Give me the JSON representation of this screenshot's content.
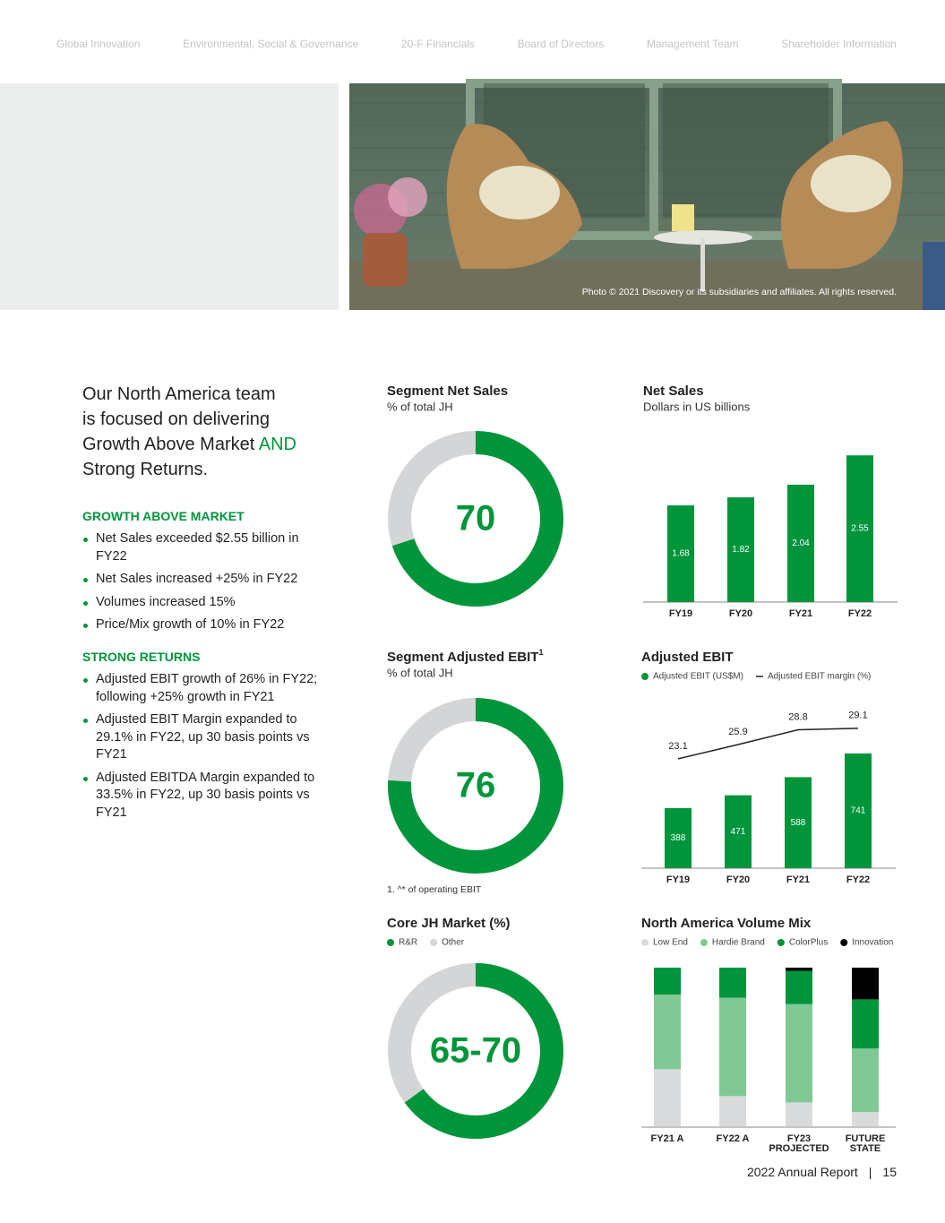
{
  "nav": [
    "Global Innovation",
    "Environmental, Social & Governance",
    "20-F Financials",
    "Board of Directors",
    "Management Team",
    "Shareholder Information"
  ],
  "photo_caption": "Photo © 2021 Discovery or its subsidiaries and affiliates. All rights reserved.",
  "intro": {
    "lines": [
      "Our North America team",
      "is focused on delivering",
      "Growth Above Market"
    ],
    "highlight": "AND",
    "last": "Strong Returns."
  },
  "sections": [
    {
      "title": "GROWTH ABOVE MARKET",
      "bullets": [
        "Net Sales exceeded $2.55 billion in FY22",
        "Net Sales increased +25% in FY22",
        "Volumes increased 15%",
        "Price/Mix growth of 10% in FY22"
      ]
    },
    {
      "title": "STRONG RETURNS",
      "bullets": [
        "Adjusted EBIT growth of 26% in FY22; following +25% growth in FY21",
        "Adjusted EBIT Margin expanded to 29.1% in FY22, up 30 basis points vs FY21",
        "Adjusted EBITDA Margin expanded to 33.5% in FY22, up 30 basis points vs FY21"
      ]
    }
  ],
  "charts": [
    {
      "type": "donut",
      "title": "Segment Net Sales",
      "subtitle": "% of total JH",
      "value": 70,
      "color": "#00953b",
      "rest_color": "#d4d5d6"
    },
    {
      "type": "donut",
      "title": "Segment Adjusted EBIT",
      "title_note": "1",
      "subtitle": "% of total JH",
      "value": 76,
      "color": "#00953b",
      "rest_color": "#d4d5d6"
    },
    {
      "type": "donut",
      "title": "Core JH Market (%)",
      "legend": [
        {
          "name": "R&R",
          "color": "#00953b"
        },
        {
          "name": "Other",
          "color": "#d4d5d6"
        }
      ],
      "values": [
        65,
        70
      ],
      "value_label": "65-70"
    },
    {
      "type": "bar",
      "title": "Net Sales",
      "subtitle": "Dollars in US billions",
      "categories": [
        "FY19",
        "FY20",
        "FY21",
        "FY22"
      ],
      "values": [
        1.68,
        1.82,
        2.04,
        2.55
      ],
      "color": "#00953b",
      "ylim": [
        0,
        2.6
      ]
    },
    {
      "type": "bar_line",
      "title": "Adjusted EBIT",
      "categories": [
        "FY19",
        "FY20",
        "FY21",
        "FY22"
      ],
      "series": [
        {
          "name": "Adjusted EBIT (US$M)",
          "color": "#00953b",
          "values": [
            388,
            471,
            588,
            741
          ]
        },
        {
          "name": "Adjusted EBIT margin (%)",
          "color": "#222222",
          "values": [
            23.1,
            25.9,
            28.8,
            29.1
          ],
          "axis": "y2"
        }
      ],
      "ylim": [
        0,
        1065
      ],
      "y2lim": [
        1.6,
        34
      ]
    },
    {
      "type": "stacked_bar",
      "title": "North America Volume Mix",
      "categories": [
        "FY21 A",
        "FY22 A",
        "FY23\nPROJECTED",
        "FUTURE\nSTATE"
      ],
      "series": [
        {
          "name": "Low End",
          "color": "#d9dadb",
          "values": [
            36,
            19,
            15,
            9
          ]
        },
        {
          "name": "Hardie Brand",
          "color": "#80c995",
          "values": [
            47,
            62,
            62,
            40
          ]
        },
        {
          "name": "ColorPlus",
          "color": "#00953b",
          "values": [
            17,
            19,
            21,
            31
          ]
        },
        {
          "name": "Innovation",
          "color": "#000000",
          "values": [
            0,
            0,
            2,
            20
          ]
        }
      ],
      "ylim": [
        0,
        100
      ]
    }
  ],
  "footnote": "1. ^* of operating EBIT",
  "footer": {
    "report": "2022 Annual Report",
    "separator": "|",
    "page": 15
  }
}
